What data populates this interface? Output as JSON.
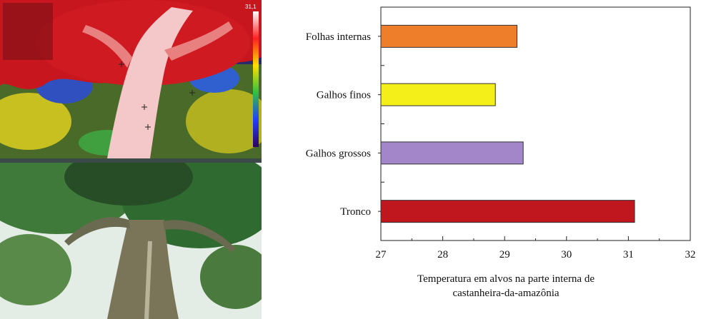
{
  "photos": {
    "thermal_scale": "31,1"
  },
  "chart_data": {
    "type": "bar",
    "orientation": "horizontal",
    "categories": [
      "Folhas internas",
      "Galhos finos",
      "Galhos grossos",
      "Tronco"
    ],
    "values": [
      29.2,
      28.85,
      29.3,
      31.1
    ],
    "colors": [
      "#ef7e2b",
      "#f5ef19",
      "#a286c9",
      "#c0171f"
    ],
    "xlim": [
      27,
      32
    ],
    "xticks": [
      "27",
      "28",
      "29",
      "30",
      "31",
      "32"
    ],
    "xlabel_lines": [
      "Temperatura em alvos na parte interna de",
      "castanheira-da-amazônia"
    ],
    "grid": false
  }
}
